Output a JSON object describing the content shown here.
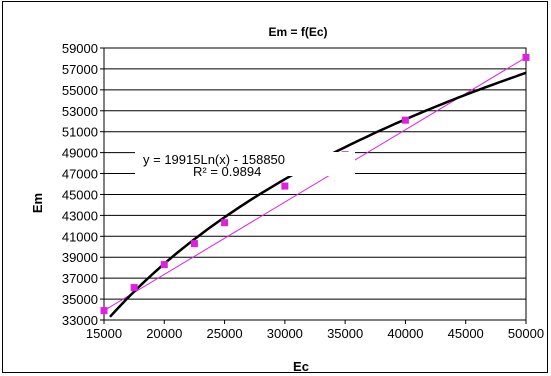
{
  "chart_data": {
    "type": "scatter",
    "title": "Em = f(Ec)",
    "xlabel": "Ec",
    "ylabel": "Em",
    "xlim": [
      15000,
      50000
    ],
    "ylim": [
      33000,
      59000
    ],
    "x_ticks": [
      15000,
      20000,
      25000,
      30000,
      35000,
      40000,
      45000,
      50000
    ],
    "y_ticks": [
      33000,
      35000,
      37000,
      39000,
      41000,
      43000,
      45000,
      47000,
      49000,
      51000,
      53000,
      55000,
      57000,
      59000
    ],
    "grid": "horizontal",
    "legend": "none",
    "series": [
      {
        "type": "scatter",
        "color": "#e020e0",
        "marker": "square",
        "points": [
          [
            15000,
            33900
          ],
          [
            17500,
            36100
          ],
          [
            20000,
            38300
          ],
          [
            22500,
            40300
          ],
          [
            25000,
            42300
          ],
          [
            30000,
            45800
          ],
          [
            35000,
            48800
          ],
          [
            40000,
            52100
          ],
          [
            50000,
            58100
          ]
        ]
      },
      {
        "type": "line",
        "color": "#e020e0",
        "points": [
          [
            15000,
            33900
          ],
          [
            50000,
            58100
          ]
        ]
      },
      {
        "type": "log-trendline",
        "color": "#000000",
        "coef_a": 19915,
        "coef_b": -158850,
        "x_range": [
          15500,
          50000
        ]
      }
    ],
    "annotations": {
      "equation": "y = 19915Ln(x) - 158850",
      "r2_label": "R² = 0.9894"
    }
  }
}
